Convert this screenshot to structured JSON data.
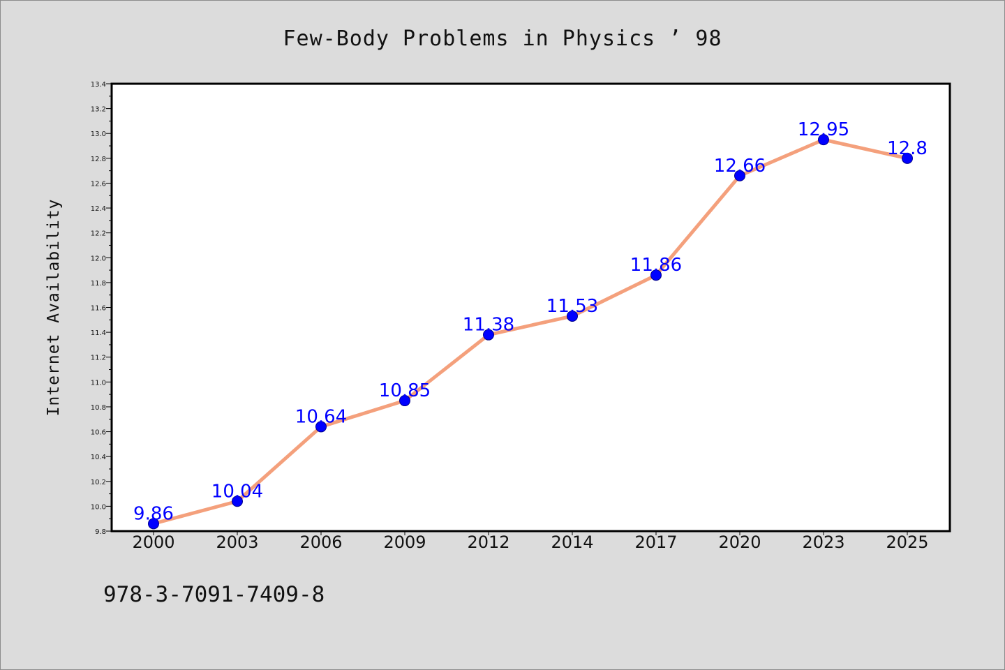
{
  "title": "Few-Body Problems in Physics ’ 98",
  "footer_code": "978-3-7091-7409-8",
  "colors": {
    "background": "#dcdcdc",
    "plot_background": "#ffffff",
    "line": "#f4a07c",
    "marker": "#0000ff",
    "data_label": "#0000ff"
  },
  "chart_data": {
    "type": "line",
    "ylabel": "Internet Availability",
    "xlabel": "",
    "categories": [
      "2000",
      "2003",
      "2006",
      "2009",
      "2012",
      "2014",
      "2017",
      "2020",
      "2023",
      "2025"
    ],
    "series": [
      {
        "values": [
          9.86,
          10.04,
          10.64,
          10.85,
          11.38,
          11.53,
          11.86,
          12.66,
          12.95,
          12.8
        ],
        "labels": [
          "9.86",
          "10.04",
          "10.64",
          "10.85",
          "11.38",
          "11.53",
          "11.86",
          "12.66",
          "12.95",
          "12.8"
        ]
      }
    ],
    "ylim": [
      9.8,
      13.4
    ],
    "yticks": [
      "9.8",
      "10.0",
      "10.2",
      "10.4",
      "10.6",
      "10.8",
      "11.0",
      "11.2",
      "11.4",
      "11.6",
      "11.8",
      "12.0",
      "12.2",
      "12.4",
      "12.6",
      "12.8",
      "13.0",
      "13.2",
      "13.4"
    ],
    "grid": false,
    "legend": "none"
  }
}
